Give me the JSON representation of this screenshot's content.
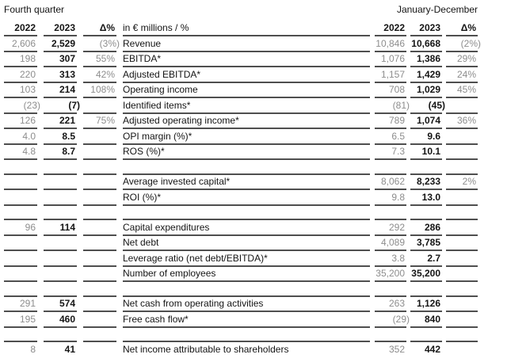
{
  "header": {
    "left_period": "Fourth quarter",
    "right_period": "January-December",
    "unit_label": "in € millions / %",
    "columns": [
      "2022",
      "2023",
      "Δ%"
    ]
  },
  "colors": {
    "line": "#4f4f4f",
    "muted": "#8d8d8d",
    "strong": "#141414",
    "background": "#ffffff"
  },
  "rows": [
    {
      "label": "Revenue",
      "q4": [
        "2,606",
        "2,529",
        "(3%)"
      ],
      "fy": [
        "10,846",
        "10,668",
        "(2%)"
      ]
    },
    {
      "label": "EBITDA*",
      "q4": [
        "198",
        "307",
        "55%"
      ],
      "fy": [
        "1,076",
        "1,386",
        "29%"
      ]
    },
    {
      "label": "Adjusted EBITDA*",
      "q4": [
        "220",
        "313",
        "42%"
      ],
      "fy": [
        "1,157",
        "1,429",
        "24%"
      ]
    },
    {
      "label": "Operating income",
      "q4": [
        "103",
        "214",
        "108%"
      ],
      "fy": [
        "708",
        "1,029",
        "45%"
      ]
    },
    {
      "label": "Identified items*",
      "q4": [
        "(23)",
        "(7)",
        ""
      ],
      "fy": [
        "(81)",
        "(45)",
        ""
      ]
    },
    {
      "label": "Adjusted operating income*",
      "q4": [
        "126",
        "221",
        "75%"
      ],
      "fy": [
        "789",
        "1,074",
        "36%"
      ]
    },
    {
      "label": "OPI margin (%)*",
      "q4": [
        "4.0",
        "8.5",
        ""
      ],
      "fy": [
        "6.5",
        "9.6",
        ""
      ]
    },
    {
      "label": "ROS (%)*",
      "q4": [
        "4.8",
        "8.7",
        ""
      ],
      "fy": [
        "7.3",
        "10.1",
        ""
      ]
    },
    {
      "spacer": true
    },
    {
      "label": "Average invested capital*",
      "q4": [
        "",
        "",
        ""
      ],
      "fy": [
        "8,062",
        "8,233",
        "2%"
      ]
    },
    {
      "label": "ROI (%)*",
      "q4": [
        "",
        "",
        ""
      ],
      "fy": [
        "9.8",
        "13.0",
        ""
      ]
    },
    {
      "spacer": true
    },
    {
      "label": "Capital expenditures",
      "q4": [
        "96",
        "114",
        ""
      ],
      "fy": [
        "292",
        "286",
        ""
      ]
    },
    {
      "label": "Net debt",
      "q4": [
        "",
        "",
        ""
      ],
      "fy": [
        "4,089",
        "3,785",
        ""
      ]
    },
    {
      "label": "Leverage ratio (net debt/EBITDA)*",
      "q4": [
        "",
        "",
        ""
      ],
      "fy": [
        "3.8",
        "2.7",
        ""
      ]
    },
    {
      "label": "Number of employees",
      "q4": [
        "",
        "",
        ""
      ],
      "fy": [
        "35,200",
        "35,200",
        ""
      ]
    },
    {
      "spacer": true
    },
    {
      "label": "Net cash from operating activities",
      "q4": [
        "291",
        "574",
        ""
      ],
      "fy": [
        "263",
        "1,126",
        ""
      ]
    },
    {
      "label": "Free cash flow*",
      "q4": [
        "195",
        "460",
        ""
      ],
      "fy": [
        "(29)",
        "840",
        ""
      ]
    },
    {
      "spacer": true
    },
    {
      "label": "Net income attributable to shareholders",
      "q4": [
        "8",
        "41",
        ""
      ],
      "fy": [
        "352",
        "442",
        ""
      ],
      "last": true
    }
  ]
}
